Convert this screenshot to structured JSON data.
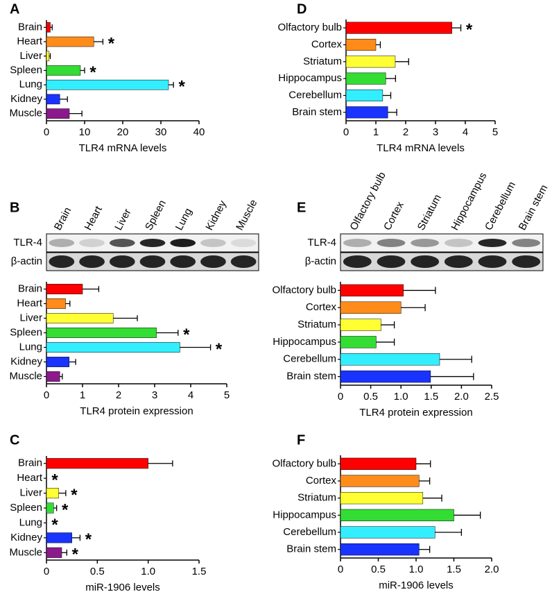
{
  "chart_data": [
    {
      "type": "bar",
      "orientation": "horizontal",
      "panel": "A",
      "xlabel": "TLR4 mRNA levels",
      "categories": [
        "Brain",
        "Heart",
        "Liver",
        "Spleen",
        "Lung",
        "Kidney",
        "Muscle"
      ],
      "values": [
        1,
        12.4,
        0.7,
        8.9,
        32,
        3.5,
        6
      ],
      "errors": [
        0.5,
        2.4,
        0.3,
        1.1,
        1.3,
        2,
        3.3
      ],
      "significance": [
        null,
        "*",
        null,
        "*",
        "*",
        null,
        null
      ],
      "colors": [
        "#ff0000",
        "#ff8c1a",
        "#ffff33",
        "#33dd33",
        "#33eeff",
        "#1a33ff",
        "#8c1a8c"
      ],
      "xlim": [
        0,
        40
      ],
      "xticks": [
        0,
        10,
        20,
        30,
        40
      ]
    },
    {
      "type": "bar",
      "orientation": "horizontal",
      "panel": "B",
      "xlabel": "TLR4 protein expression",
      "blot": {
        "lanes": [
          "Brain",
          "Heart",
          "Liver",
          "Spleen",
          "Lung",
          "Kidney",
          "Muscle"
        ],
        "rows": [
          "TLR-4",
          "β-actin"
        ]
      },
      "categories": [
        "Brain",
        "Heart",
        "Liver",
        "Spleen",
        "Lung",
        "Kidney",
        "Muscle"
      ],
      "values": [
        1.0,
        0.53,
        1.85,
        3.05,
        3.7,
        0.63,
        0.37
      ],
      "errors": [
        0.45,
        0.12,
        0.67,
        0.6,
        0.85,
        0.18,
        0.07
      ],
      "significance": [
        null,
        null,
        null,
        "*",
        "*",
        null,
        null
      ],
      "colors": [
        "#ff0000",
        "#ff8c1a",
        "#ffff33",
        "#33dd33",
        "#33eeff",
        "#1a33ff",
        "#8c1a8c"
      ],
      "xlim": [
        0,
        5
      ],
      "xticks": [
        0,
        1,
        2,
        3,
        4,
        5
      ]
    },
    {
      "type": "bar",
      "orientation": "horizontal",
      "panel": "C",
      "xlabel": "miR-1906 levels",
      "categories": [
        "Brain",
        "Heart",
        "Liver",
        "Spleen",
        "Lung",
        "Kidney",
        "Muscle"
      ],
      "values": [
        1.0,
        0,
        0.12,
        0.07,
        0,
        0.25,
        0.15
      ],
      "errors": [
        0.24,
        null,
        0.07,
        0.03,
        null,
        0.08,
        0.05
      ],
      "significance": [
        null,
        "*",
        "*",
        "*",
        "*",
        "*",
        "*"
      ],
      "colors": [
        "#ff0000",
        "#ff8c1a",
        "#ffff33",
        "#33dd33",
        "#33eeff",
        "#1a33ff",
        "#8c1a8c"
      ],
      "xlim": [
        0,
        1.5
      ],
      "xticks": [
        0,
        0.5,
        {
          "value": 1,
          "label": "1.0"
        },
        1.5
      ]
    },
    {
      "type": "bar",
      "orientation": "horizontal",
      "panel": "D",
      "xlabel": "TLR4 mRNA levels",
      "categories": [
        "Olfactory bulb",
        "Cortex",
        "Striatum",
        "Hippocampus",
        "Cerebellum",
        "Brain stem"
      ],
      "values": [
        3.55,
        1.0,
        1.65,
        1.33,
        1.23,
        1.4
      ],
      "errors": [
        0.3,
        0.15,
        0.45,
        0.33,
        0.27,
        0.3
      ],
      "significance": [
        "*",
        null,
        null,
        null,
        null,
        null
      ],
      "colors": [
        "#ff0000",
        "#ff8c1a",
        "#ffff33",
        "#33dd33",
        "#33eeff",
        "#1a33ff"
      ],
      "xlim": [
        0,
        5
      ],
      "xticks": [
        0,
        1,
        2,
        3,
        4,
        5
      ]
    },
    {
      "type": "bar",
      "orientation": "horizontal",
      "panel": "E",
      "xlabel": "TLR4 protein expression",
      "blot": {
        "lanes": [
          "Olfactory bulb",
          "Cortex",
          "Striatum",
          "Hippocampus",
          "Cerebellum",
          "Brain stem"
        ],
        "rows": [
          "TLR-4",
          "β-actin"
        ]
      },
      "categories": [
        "Olfactory bulb",
        "Cortex",
        "Striatum",
        "Hippocampus",
        "Cerebellum",
        "Brain stem"
      ],
      "values": [
        1.04,
        1.0,
        0.67,
        0.59,
        1.64,
        1.49
      ],
      "errors": [
        0.53,
        0.4,
        0.22,
        0.3,
        0.53,
        0.71
      ],
      "significance": [
        null,
        null,
        null,
        null,
        null,
        null
      ],
      "colors": [
        "#ff0000",
        "#ff8c1a",
        "#ffff33",
        "#33dd33",
        "#33eeff",
        "#1a33ff"
      ],
      "xlim": [
        0,
        2.5
      ],
      "xticks": [
        0,
        0.5,
        {
          "value": 1,
          "label": "1.0"
        },
        1.5,
        {
          "value": 2,
          "label": "2.0"
        },
        2.5
      ]
    },
    {
      "type": "bar",
      "orientation": "horizontal",
      "panel": "F",
      "xlabel": "miR-1906 levels",
      "categories": [
        "Olfactory bulb",
        "Cortex",
        "Striatum",
        "Hippocampus",
        "Cerebellum",
        "Brain stem"
      ],
      "values": [
        1.0,
        1.04,
        1.09,
        1.5,
        1.25,
        1.04
      ],
      "errors": [
        0.19,
        0.14,
        0.25,
        0.35,
        0.35,
        0.14
      ],
      "significance": [
        null,
        null,
        null,
        null,
        null,
        null
      ],
      "colors": [
        "#ff0000",
        "#ff8c1a",
        "#ffff33",
        "#33dd33",
        "#33eeff",
        "#1a33ff"
      ],
      "xlim": [
        0,
        2
      ],
      "xticks": [
        0,
        0.5,
        {
          "value": 1,
          "label": "1.0"
        },
        1.5,
        {
          "value": 2,
          "label": "2.0"
        }
      ]
    }
  ]
}
